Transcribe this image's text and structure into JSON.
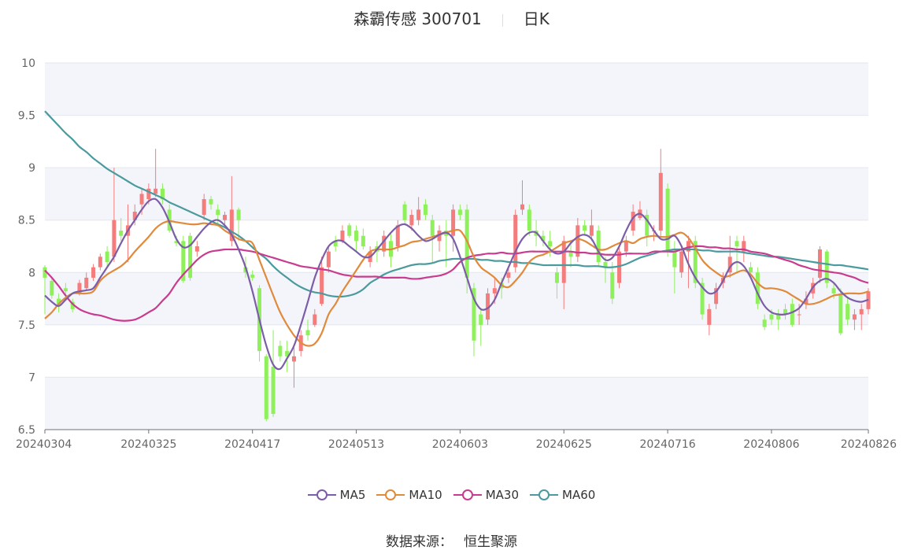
{
  "header": {
    "title": "森霸传感 300701",
    "period": "日K"
  },
  "footer": {
    "label": "数据来源：",
    "source": "恒生聚源"
  },
  "chart_data": {
    "type": "candlestick",
    "ylim": [
      6.5,
      10
    ],
    "yticks": [
      "6.5",
      "7",
      "7.5",
      "8",
      "8.5",
      "9",
      "9.5",
      "10"
    ],
    "xticks": [
      "20240304",
      "20240325",
      "20240417",
      "20240513",
      "20240603",
      "20240625",
      "20240716",
      "20240806",
      "20240826"
    ],
    "xtick_index": [
      0,
      15,
      30,
      45,
      60,
      75,
      90,
      105,
      119
    ],
    "grid": true,
    "legend_position": "bottom",
    "up_color": "#f47c7c",
    "down_color": "#8ef05a",
    "series": [
      {
        "name": "MA5",
        "color": "#7b5ea7",
        "values": [
          7.78,
          7.72,
          7.68,
          7.74,
          7.8,
          7.82,
          7.83,
          7.85,
          7.95,
          8.05,
          8.15,
          8.28,
          8.4,
          8.5,
          8.6,
          8.68,
          8.7,
          8.62,
          8.48,
          8.32,
          8.24,
          8.26,
          8.34,
          8.42,
          8.48,
          8.5,
          8.45,
          8.36,
          8.22,
          8.05,
          7.82,
          7.55,
          7.3,
          7.12,
          7.08,
          7.18,
          7.3,
          7.5,
          7.72,
          7.95,
          8.12,
          8.25,
          8.3,
          8.3,
          8.25,
          8.2,
          8.15,
          8.15,
          8.22,
          8.3,
          8.38,
          8.44,
          8.46,
          8.42,
          8.35,
          8.3,
          8.32,
          8.36,
          8.38,
          8.32,
          8.15,
          7.95,
          7.75,
          7.65,
          7.66,
          7.74,
          7.9,
          8.05,
          8.2,
          8.32,
          8.38,
          8.38,
          8.3,
          8.22,
          8.18,
          8.2,
          8.28,
          8.34,
          8.36,
          8.32,
          8.2,
          8.12,
          8.14,
          8.25,
          8.4,
          8.52,
          8.56,
          8.5,
          8.4,
          8.32,
          8.32,
          8.35,
          8.25,
          8.08,
          7.95,
          7.86,
          7.8,
          7.82,
          7.92,
          8.05,
          8.1,
          8.06,
          7.95,
          7.8,
          7.68,
          7.62,
          7.6,
          7.6,
          7.62,
          7.66,
          7.75,
          7.86,
          7.92,
          7.94,
          7.9,
          7.82,
          7.76,
          7.73,
          7.72,
          7.74
        ]
      },
      {
        "name": "MA10",
        "color": "#e08a3c",
        "values": [
          7.56,
          7.62,
          7.7,
          7.76,
          7.8,
          7.8,
          7.8,
          7.82,
          7.92,
          7.98,
          8.02,
          8.06,
          8.12,
          8.2,
          8.27,
          8.34,
          8.42,
          8.47,
          8.49,
          8.48,
          8.47,
          8.46,
          8.46,
          8.47,
          8.46,
          8.45,
          8.4,
          8.36,
          8.32,
          8.3,
          8.28,
          8.12,
          7.95,
          7.78,
          7.62,
          7.5,
          7.4,
          7.33,
          7.3,
          7.32,
          7.42,
          7.6,
          7.7,
          7.82,
          7.92,
          8.02,
          8.12,
          8.2,
          8.22,
          8.22,
          8.22,
          8.24,
          8.26,
          8.29,
          8.3,
          8.32,
          8.34,
          8.36,
          8.38,
          8.4,
          8.4,
          8.3,
          8.15,
          8.05,
          8.0,
          7.95,
          7.88,
          7.86,
          7.92,
          8.0,
          8.1,
          8.15,
          8.17,
          8.2,
          8.24,
          8.28,
          8.3,
          8.32,
          8.3,
          8.26,
          8.22,
          8.22,
          8.25,
          8.28,
          8.3,
          8.28,
          8.32,
          8.34,
          8.35,
          8.34,
          8.34,
          8.36,
          8.38,
          8.33,
          8.23,
          8.12,
          8.05,
          8.0,
          7.96,
          7.97,
          8.0,
          8.02,
          7.98,
          7.9,
          7.85,
          7.85,
          7.84,
          7.82,
          7.78,
          7.74,
          7.7,
          7.7,
          7.72,
          7.75,
          7.78,
          7.79,
          7.8,
          7.8,
          7.8,
          7.82
        ]
      },
      {
        "name": "MA30",
        "color": "#c83b8e",
        "values": [
          8.02,
          7.95,
          7.87,
          7.78,
          7.7,
          7.65,
          7.62,
          7.6,
          7.59,
          7.57,
          7.55,
          7.54,
          7.54,
          7.55,
          7.58,
          7.62,
          7.66,
          7.73,
          7.8,
          7.9,
          7.98,
          8.05,
          8.12,
          8.17,
          8.2,
          8.21,
          8.22,
          8.22,
          8.22,
          8.21,
          8.2,
          8.18,
          8.16,
          8.14,
          8.12,
          8.1,
          8.08,
          8.06,
          8.05,
          8.04,
          8.03,
          8.02,
          8.0,
          7.98,
          7.97,
          7.96,
          7.96,
          7.96,
          7.96,
          7.95,
          7.95,
          7.95,
          7.95,
          7.94,
          7.94,
          7.95,
          7.96,
          7.97,
          7.99,
          8.03,
          8.1,
          8.14,
          8.16,
          8.17,
          8.18,
          8.18,
          8.19,
          8.18,
          8.18,
          8.19,
          8.2,
          8.2,
          8.2,
          8.2,
          8.2,
          8.2,
          8.2,
          8.19,
          8.19,
          8.18,
          8.18,
          8.17,
          8.17,
          8.17,
          8.18,
          8.18,
          8.18,
          8.18,
          8.2,
          8.2,
          8.2,
          8.2,
          8.22,
          8.24,
          8.25,
          8.25,
          8.24,
          8.24,
          8.23,
          8.23,
          8.22,
          8.22,
          8.2,
          8.19,
          8.18,
          8.16,
          8.14,
          8.12,
          8.1,
          8.07,
          8.05,
          8.03,
          8.02,
          8.01,
          8.0,
          7.99,
          7.97,
          7.95,
          7.92,
          7.9
        ]
      },
      {
        "name": "MA60",
        "color": "#4a9a9e",
        "values": [
          9.54,
          9.47,
          9.4,
          9.33,
          9.27,
          9.2,
          9.15,
          9.09,
          9.04,
          8.99,
          8.95,
          8.91,
          8.87,
          8.83,
          8.8,
          8.77,
          8.74,
          8.71,
          8.67,
          8.64,
          8.61,
          8.58,
          8.55,
          8.52,
          8.49,
          8.46,
          8.43,
          8.39,
          8.35,
          8.3,
          8.24,
          8.18,
          8.13,
          8.06,
          8.0,
          7.95,
          7.9,
          7.86,
          7.83,
          7.81,
          7.8,
          7.78,
          7.77,
          7.77,
          7.78,
          7.8,
          7.84,
          7.9,
          7.94,
          7.98,
          8.01,
          8.03,
          8.05,
          8.07,
          8.08,
          8.08,
          8.09,
          8.11,
          8.12,
          8.13,
          8.13,
          8.13,
          8.13,
          8.12,
          8.12,
          8.11,
          8.11,
          8.1,
          8.1,
          8.09,
          8.09,
          8.08,
          8.07,
          8.07,
          8.07,
          8.07,
          8.07,
          8.07,
          8.06,
          8.06,
          8.06,
          8.05,
          8.05,
          8.06,
          8.08,
          8.11,
          8.14,
          8.16,
          8.18,
          8.2,
          8.21,
          8.22,
          8.22,
          8.22,
          8.22,
          8.21,
          8.21,
          8.2,
          8.2,
          8.2,
          8.2,
          8.19,
          8.18,
          8.17,
          8.16,
          8.15,
          8.15,
          8.14,
          8.13,
          8.12,
          8.11,
          8.1,
          8.09,
          8.08,
          8.07,
          8.07,
          8.06,
          8.05,
          8.04,
          8.03
        ]
      }
    ],
    "candles": [
      [
        8.05,
        7.95,
        8.07,
        7.6
      ],
      [
        7.92,
        7.78,
        7.95,
        7.75
      ],
      [
        7.75,
        7.7,
        7.8,
        7.62
      ],
      [
        7.85,
        7.82,
        7.9,
        7.78
      ],
      [
        7.72,
        7.65,
        7.75,
        7.62
      ],
      [
        7.8,
        7.9,
        7.93,
        7.78
      ],
      [
        7.85,
        7.95,
        8.0,
        7.83
      ],
      [
        7.95,
        8.05,
        8.08,
        7.92
      ],
      [
        8.05,
        8.15,
        8.18,
        8.02
      ],
      [
        8.2,
        8.1,
        8.25,
        8.05
      ],
      [
        8.15,
        8.5,
        9.0,
        8.1
      ],
      [
        8.4,
        8.35,
        8.52,
        8.3
      ],
      [
        8.35,
        8.45,
        8.65,
        8.1
      ],
      [
        8.5,
        8.58,
        8.65,
        8.45
      ],
      [
        8.65,
        8.75,
        8.8,
        8.55
      ],
      [
        8.7,
        8.8,
        8.85,
        8.65
      ],
      [
        8.75,
        8.8,
        9.18,
        8.72
      ],
      [
        8.8,
        8.7,
        8.85,
        8.65
      ],
      [
        8.6,
        8.4,
        8.65,
        8.38
      ],
      [
        8.3,
        8.28,
        8.35,
        8.25
      ],
      [
        8.3,
        7.92,
        8.35,
        7.9
      ],
      [
        8.35,
        7.95,
        8.38,
        7.92
      ],
      [
        8.2,
        8.25,
        8.3,
        8.15
      ],
      [
        8.55,
        8.7,
        8.75,
        8.5
      ],
      [
        8.7,
        8.65,
        8.73,
        8.6
      ],
      [
        8.6,
        8.55,
        8.65,
        8.45
      ],
      [
        8.5,
        8.55,
        8.58,
        8.45
      ],
      [
        8.3,
        8.6,
        8.92,
        8.25
      ],
      [
        8.6,
        8.5,
        8.62,
        8.3
      ],
      [
        8.05,
        8.0,
        8.15,
        7.95
      ],
      [
        7.98,
        7.95,
        8.02,
        7.92
      ],
      [
        7.85,
        7.25,
        7.88,
        7.15
      ],
      [
        7.2,
        6.6,
        7.22,
        6.58
      ],
      [
        7.1,
        6.65,
        7.45,
        6.62
      ],
      [
        7.3,
        7.2,
        7.35,
        7.15
      ],
      [
        7.25,
        7.2,
        7.35,
        7.05
      ],
      [
        7.15,
        7.2,
        7.3,
        6.9
      ],
      [
        7.25,
        7.4,
        7.45,
        7.2
      ],
      [
        7.45,
        7.4,
        7.55,
        7.35
      ],
      [
        7.5,
        7.6,
        7.65,
        7.48
      ],
      [
        7.7,
        8.05,
        8.15,
        7.68
      ],
      [
        8.05,
        8.2,
        8.25,
        8.0
      ],
      [
        8.3,
        8.25,
        8.35,
        8.2
      ],
      [
        8.3,
        8.4,
        8.45,
        8.28
      ],
      [
        8.45,
        8.35,
        8.47,
        8.33
      ],
      [
        8.4,
        8.3,
        8.45,
        8.2
      ],
      [
        8.35,
        8.25,
        8.42,
        8.22
      ],
      [
        8.1,
        8.2,
        8.25,
        8.05
      ],
      [
        8.25,
        8.2,
        8.3,
        8.1
      ],
      [
        8.2,
        8.35,
        8.4,
        8.15
      ],
      [
        8.3,
        8.15,
        8.38,
        8.05
      ],
      [
        8.25,
        8.45,
        8.5,
        8.2
      ],
      [
        8.65,
        8.5,
        8.68,
        8.45
      ],
      [
        8.45,
        8.55,
        8.6,
        8.4
      ],
      [
        8.5,
        8.6,
        8.72,
        8.45
      ],
      [
        8.65,
        8.55,
        8.7,
        8.5
      ],
      [
        8.5,
        8.35,
        8.55,
        8.1
      ],
      [
        8.3,
        8.4,
        8.45,
        8.2
      ],
      [
        8.4,
        8.35,
        8.5,
        8.05
      ],
      [
        8.35,
        8.6,
        8.65,
        8.2
      ],
      [
        8.6,
        8.55,
        8.65,
        8.5
      ],
      [
        8.6,
        7.95,
        8.65,
        7.8
      ],
      [
        7.85,
        7.35,
        7.9,
        7.2
      ],
      [
        7.6,
        7.5,
        7.65,
        7.3
      ],
      [
        7.55,
        7.8,
        7.85,
        7.5
      ],
      [
        7.8,
        7.85,
        7.95,
        7.7
      ],
      [
        7.9,
        7.85,
        7.95,
        7.75
      ],
      [
        7.95,
        8.0,
        8.05,
        7.9
      ],
      [
        8.05,
        8.55,
        8.6,
        8.0
      ],
      [
        8.6,
        8.65,
        8.88,
        8.55
      ],
      [
        8.6,
        8.4,
        8.65,
        8.35
      ],
      [
        8.4,
        8.35,
        8.5,
        8.25
      ],
      [
        8.35,
        8.3,
        8.4,
        8.25
      ],
      [
        8.3,
        8.25,
        8.4,
        8.15
      ],
      [
        8.0,
        7.9,
        8.05,
        7.75
      ],
      [
        7.9,
        8.3,
        8.35,
        7.65
      ],
      [
        8.2,
        8.15,
        8.3,
        8.05
      ],
      [
        8.15,
        8.45,
        8.52,
        8.1
      ],
      [
        8.45,
        8.4,
        8.5,
        8.35
      ],
      [
        8.35,
        8.45,
        8.6,
        8.3
      ],
      [
        8.4,
        8.1,
        8.45,
        8.05
      ],
      [
        8.1,
        8.05,
        8.15,
        7.9
      ],
      [
        8.0,
        7.75,
        8.1,
        7.7
      ],
      [
        7.9,
        8.2,
        8.25,
        7.85
      ],
      [
        8.2,
        8.3,
        8.35,
        8.15
      ],
      [
        8.4,
        8.58,
        8.65,
        8.35
      ],
      [
        8.52,
        8.6,
        8.68,
        8.5
      ],
      [
        8.55,
        8.35,
        8.6,
        8.25
      ],
      [
        8.4,
        8.4,
        8.45,
        8.3
      ],
      [
        8.4,
        8.95,
        9.18,
        8.35
      ],
      [
        8.8,
        8.2,
        8.85,
        8.15
      ],
      [
        8.2,
        8.05,
        8.3,
        7.8
      ],
      [
        8.0,
        8.2,
        8.25,
        7.95
      ],
      [
        8.2,
        8.3,
        8.35,
        7.85
      ],
      [
        8.3,
        7.9,
        8.35,
        7.85
      ],
      [
        7.9,
        7.6,
        7.95,
        7.55
      ],
      [
        7.5,
        7.65,
        7.7,
        7.4
      ],
      [
        7.7,
        7.85,
        7.9,
        7.65
      ],
      [
        7.9,
        7.95,
        8.0,
        7.85
      ],
      [
        8.0,
        8.15,
        8.35,
        7.95
      ],
      [
        8.3,
        8.25,
        8.35,
        8.0
      ],
      [
        8.2,
        8.3,
        8.35,
        8.1
      ],
      [
        8.05,
        8.0,
        8.1,
        7.95
      ],
      [
        8.0,
        7.7,
        8.05,
        7.65
      ],
      [
        7.55,
        7.48,
        7.6,
        7.45
      ],
      [
        7.6,
        7.55,
        7.65,
        7.5
      ],
      [
        7.6,
        7.55,
        7.65,
        7.45
      ],
      [
        7.65,
        7.6,
        7.7,
        7.55
      ],
      [
        7.7,
        7.5,
        7.75,
        7.48
      ],
      [
        7.6,
        7.6,
        7.7,
        7.5
      ],
      [
        7.7,
        7.75,
        7.82,
        7.65
      ],
      [
        7.8,
        7.9,
        7.95,
        7.75
      ],
      [
        7.95,
        8.22,
        8.25,
        7.9
      ],
      [
        8.2,
        7.9,
        8.22,
        7.85
      ],
      [
        7.85,
        7.8,
        7.9,
        7.75
      ],
      [
        7.8,
        7.42,
        7.85,
        7.4
      ],
      [
        7.7,
        7.55,
        7.75,
        7.5
      ],
      [
        7.55,
        7.6,
        7.65,
        7.45
      ],
      [
        7.6,
        7.65,
        7.7,
        7.45
      ],
      [
        7.65,
        7.82,
        7.85,
        7.6
      ]
    ]
  }
}
